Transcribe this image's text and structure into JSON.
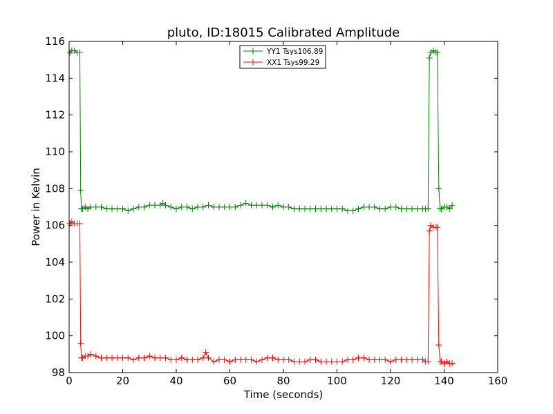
{
  "chart_data": {
    "type": "line",
    "title": "pluto, ID:18015 Calibrated Amplitude",
    "xlabel": "Time (seconds)",
    "ylabel": "Power in Kelvin",
    "xlim": [
      0,
      160
    ],
    "ylim": [
      98,
      116
    ],
    "xticks": [
      0,
      20,
      40,
      60,
      80,
      100,
      120,
      140,
      160
    ],
    "yticks": [
      98,
      100,
      102,
      104,
      106,
      108,
      110,
      112,
      114,
      116
    ],
    "grid": false,
    "legend": "top-center",
    "marker": "+",
    "series": [
      {
        "name": "YY1 Tsys106.89",
        "color": "#008000",
        "x": [
          0.3,
          1,
          2,
          3,
          4,
          4.3,
          4.6,
          5,
          6,
          7,
          8,
          10,
          12,
          14,
          16,
          18,
          20,
          22,
          24,
          26,
          28,
          30,
          32,
          34,
          35,
          36,
          38,
          40,
          42,
          44,
          46,
          48,
          50,
          52,
          54,
          56,
          58,
          60,
          62,
          64,
          66,
          68,
          70,
          72,
          74,
          76,
          78,
          80,
          82,
          84,
          86,
          88,
          90,
          92,
          94,
          96,
          98,
          100,
          102,
          104,
          106,
          108,
          110,
          112,
          114,
          116,
          118,
          120,
          122,
          124,
          126,
          128,
          130,
          132,
          133,
          134,
          134.5,
          135,
          136,
          137,
          137.5,
          138,
          138.5,
          139,
          140,
          141,
          142,
          143
        ],
        "y": [
          115.4,
          115.5,
          115.5,
          115.4,
          115.4,
          107.9,
          106.9,
          106.9,
          107.0,
          106.9,
          107.0,
          107.0,
          107.0,
          106.9,
          106.9,
          106.9,
          106.9,
          106.8,
          106.9,
          107.0,
          107.0,
          107.1,
          107.1,
          107.1,
          107.2,
          107.1,
          107.0,
          106.9,
          107.0,
          107.0,
          106.9,
          107.0,
          107.0,
          107.1,
          107.0,
          107.0,
          107.0,
          107.0,
          107.0,
          107.1,
          107.2,
          107.1,
          107.1,
          107.1,
          107.1,
          107.0,
          107.1,
          107.0,
          107.0,
          106.9,
          106.9,
          106.9,
          106.9,
          106.9,
          106.9,
          106.9,
          106.9,
          106.9,
          106.9,
          106.8,
          106.8,
          106.9,
          107.0,
          107.0,
          107.0,
          106.9,
          106.9,
          107.0,
          107.0,
          106.9,
          106.9,
          106.9,
          106.9,
          106.9,
          106.9,
          106.9,
          115.1,
          115.4,
          115.5,
          115.4,
          115.4,
          108.0,
          106.9,
          106.9,
          107.0,
          107.0,
          106.9,
          107.1
        ]
      },
      {
        "name": "XX1 Tsys99.29",
        "color": "#ff0000",
        "x": [
          0.3,
          1,
          2,
          3,
          4,
          4.3,
          4.6,
          5,
          6,
          7,
          8,
          10,
          12,
          14,
          16,
          18,
          20,
          22,
          24,
          26,
          28,
          30,
          32,
          34,
          36,
          38,
          40,
          42,
          44,
          46,
          48,
          50,
          51,
          52,
          54,
          56,
          58,
          60,
          62,
          64,
          66,
          68,
          70,
          72,
          74,
          76,
          78,
          80,
          82,
          84,
          86,
          88,
          90,
          92,
          94,
          96,
          98,
          100,
          102,
          104,
          106,
          108,
          110,
          112,
          114,
          116,
          118,
          120,
          122,
          124,
          126,
          128,
          130,
          132,
          133,
          134,
          134.5,
          135,
          136,
          137,
          137.5,
          138,
          138.5,
          139,
          140,
          141,
          142,
          143
        ],
        "y": [
          106.1,
          106.2,
          106.1,
          106.1,
          106.1,
          99.6,
          98.8,
          98.8,
          98.9,
          98.9,
          99.0,
          98.9,
          98.8,
          98.8,
          98.8,
          98.8,
          98.8,
          98.8,
          98.7,
          98.8,
          98.8,
          98.9,
          98.8,
          98.8,
          98.8,
          98.7,
          98.7,
          98.8,
          98.7,
          98.7,
          98.7,
          98.8,
          99.1,
          98.8,
          98.6,
          98.7,
          98.7,
          98.6,
          98.7,
          98.7,
          98.7,
          98.7,
          98.6,
          98.7,
          98.8,
          98.8,
          98.7,
          98.7,
          98.7,
          98.6,
          98.6,
          98.6,
          98.7,
          98.7,
          98.6,
          98.6,
          98.6,
          98.6,
          98.6,
          98.7,
          98.7,
          98.8,
          98.8,
          98.7,
          98.7,
          98.7,
          98.7,
          98.6,
          98.7,
          98.7,
          98.7,
          98.7,
          98.7,
          98.7,
          98.6,
          98.6,
          105.7,
          106.0,
          105.9,
          105.9,
          105.9,
          99.5,
          98.6,
          98.6,
          98.5,
          98.6,
          98.5,
          98.5
        ]
      }
    ]
  }
}
